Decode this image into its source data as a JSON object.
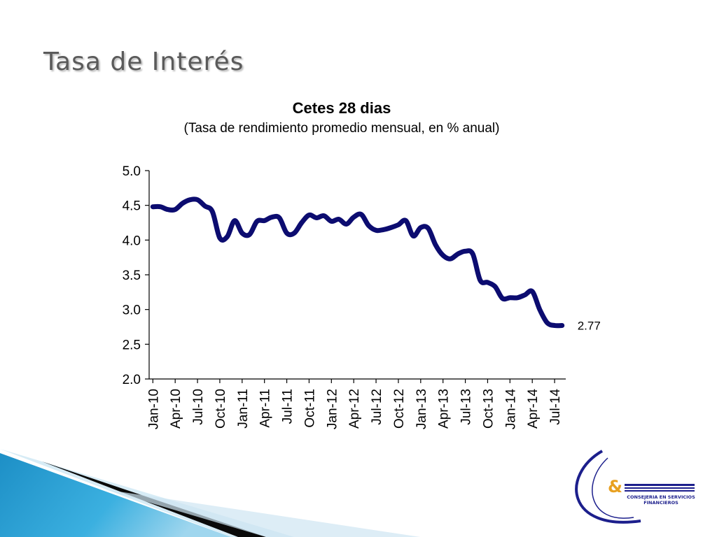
{
  "slide": {
    "title": "Tasa de Interés"
  },
  "chart_data": {
    "type": "line",
    "title": "Cetes 28 dias",
    "subtitle": "(Tasa de rendimiento promedio mensual, en % anual)",
    "xlabel": "",
    "ylabel": "",
    "ylim": [
      2.0,
      5.0
    ],
    "yticks": [
      2.0,
      2.5,
      3.0,
      3.5,
      4.0,
      4.5,
      5.0
    ],
    "ytick_labels": [
      "2.0",
      "2.5",
      "3.0",
      "3.5",
      "4.0",
      "4.5",
      "5.0"
    ],
    "xtick_labels": [
      "Jan-10",
      "Apr-10",
      "Jul-10",
      "Oct-10",
      "Jan-11",
      "Apr-11",
      "Jul-11",
      "Oct-11",
      "Jan-12",
      "Apr-12",
      "Jul-12",
      "Oct-12",
      "Jan-13",
      "Apr-13",
      "Jul-13",
      "Oct-13",
      "Jan-14",
      "Apr-14",
      "Jul-14"
    ],
    "grid": false,
    "legend": "none",
    "line_color": "#0c0c70",
    "series": [
      {
        "x": [
          "Jan-10",
          "Feb-10",
          "Mar-10",
          "Apr-10",
          "May-10",
          "Jun-10",
          "Jul-10",
          "Aug-10",
          "Sep-10",
          "Oct-10",
          "Nov-10",
          "Dec-10",
          "Jan-11",
          "Feb-11",
          "Mar-11",
          "Apr-11",
          "May-11",
          "Jun-11",
          "Jul-11",
          "Aug-11",
          "Sep-11",
          "Oct-11",
          "Nov-11",
          "Dec-11",
          "Jan-12",
          "Feb-12",
          "Mar-12",
          "Apr-12",
          "May-12",
          "Jun-12",
          "Jul-12",
          "Aug-12",
          "Sep-12",
          "Oct-12",
          "Nov-12",
          "Dec-12",
          "Jan-13",
          "Feb-13",
          "Mar-13",
          "Apr-13",
          "May-13",
          "Jun-13",
          "Jul-13",
          "Aug-13",
          "Sep-13",
          "Oct-13",
          "Nov-13",
          "Dec-13",
          "Jan-14",
          "Feb-14",
          "Mar-14",
          "Apr-14",
          "May-14",
          "Jun-14",
          "Jul-14",
          "Aug-14"
        ],
        "values": [
          4.48,
          4.48,
          4.44,
          4.44,
          4.53,
          4.58,
          4.58,
          4.49,
          4.41,
          4.03,
          4.05,
          4.28,
          4.1,
          4.08,
          4.27,
          4.28,
          4.33,
          4.32,
          4.1,
          4.1,
          4.25,
          4.36,
          4.32,
          4.35,
          4.27,
          4.3,
          4.23,
          4.33,
          4.37,
          4.21,
          4.14,
          4.15,
          4.18,
          4.22,
          4.28,
          4.06,
          4.18,
          4.17,
          3.93,
          3.78,
          3.73,
          3.8,
          3.84,
          3.8,
          3.42,
          3.39,
          3.33,
          3.16,
          3.17,
          3.17,
          3.21,
          3.26,
          3.0,
          2.81,
          2.77,
          2.77
        ]
      }
    ],
    "annotations": [
      {
        "text": "2.77",
        "x": "Aug-14",
        "y": 2.77
      }
    ]
  },
  "logo": {
    "line1": "CONSEJERIA EN SERVICIOS",
    "line2": "FINANCIEROS"
  },
  "colors": {
    "title": "#5a5a5a",
    "line": "#0c0c70",
    "logo_blue": "#1c1f8c",
    "decor_blue": "#2aa3d8"
  }
}
